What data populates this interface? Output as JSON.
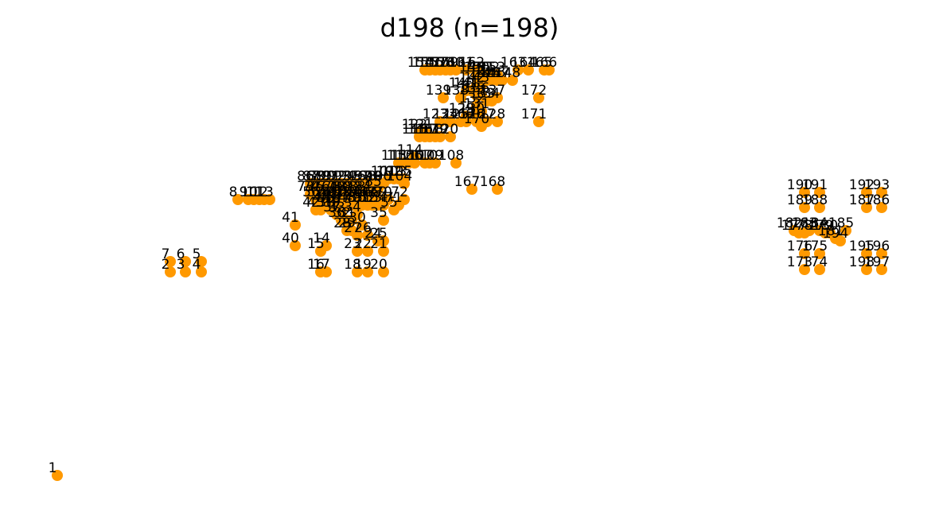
{
  "chart_data": {
    "type": "scatter",
    "title": "d198  (n=198)",
    "xlabel": "",
    "ylabel": "",
    "axes_visible": false,
    "grid": false,
    "legend": "none",
    "marker_color": "#ff9900",
    "x_range": [
      0,
      1180
    ],
    "y_range": [
      0,
      644
    ],
    "points": [
      {
        "id": "1",
        "x": 72,
        "y": 598
      },
      {
        "id": "2",
        "x": 214,
        "y": 342
      },
      {
        "id": "3",
        "x": 233,
        "y": 342
      },
      {
        "id": "4",
        "x": 253,
        "y": 342
      },
      {
        "id": "5",
        "x": 253,
        "y": 329
      },
      {
        "id": "6",
        "x": 233,
        "y": 329
      },
      {
        "id": "7",
        "x": 214,
        "y": 329
      },
      {
        "id": "8",
        "x": 299,
        "y": 251
      },
      {
        "id": "9",
        "x": 312,
        "y": 251
      },
      {
        "id": "10",
        "x": 319,
        "y": 251
      },
      {
        "id": "11",
        "x": 326,
        "y": 251
      },
      {
        "id": "12",
        "x": 332,
        "y": 251
      },
      {
        "id": "13",
        "x": 339,
        "y": 251
      },
      {
        "id": "14",
        "x": 410,
        "y": 309
      },
      {
        "id": "15",
        "x": 403,
        "y": 316
      },
      {
        "id": "16",
        "x": 403,
        "y": 342
      },
      {
        "id": "17",
        "x": 410,
        "y": 342
      },
      {
        "id": "18",
        "x": 449,
        "y": 342
      },
      {
        "id": "19",
        "x": 462,
        "y": 342
      },
      {
        "id": "20",
        "x": 482,
        "y": 342
      },
      {
        "id": "21",
        "x": 482,
        "y": 316
      },
      {
        "id": "22",
        "x": 462,
        "y": 316
      },
      {
        "id": "23",
        "x": 449,
        "y": 316
      },
      {
        "id": "24",
        "x": 475,
        "y": 303
      },
      {
        "id": "25",
        "x": 482,
        "y": 303
      },
      {
        "id": "26",
        "x": 462,
        "y": 296
      },
      {
        "id": "27",
        "x": 449,
        "y": 296
      },
      {
        "id": "28",
        "x": 436,
        "y": 290
      },
      {
        "id": "29",
        "x": 442,
        "y": 290
      },
      {
        "id": "30",
        "x": 455,
        "y": 283
      },
      {
        "id": "31",
        "x": 442,
        "y": 277
      },
      {
        "id": "32",
        "x": 436,
        "y": 277
      },
      {
        "id": "33",
        "x": 429,
        "y": 270
      },
      {
        "id": "34",
        "x": 449,
        "y": 270
      },
      {
        "id": "35",
        "x": 482,
        "y": 277
      },
      {
        "id": "36",
        "x": 429,
        "y": 277
      },
      {
        "id": "37",
        "x": 423,
        "y": 270
      },
      {
        "id": "38",
        "x": 416,
        "y": 264
      },
      {
        "id": "39",
        "x": 423,
        "y": 264
      },
      {
        "id": "40",
        "x": 371,
        "y": 309
      },
      {
        "id": "41",
        "x": 371,
        "y": 283
      },
      {
        "id": "42",
        "x": 397,
        "y": 264
      },
      {
        "id": "43",
        "x": 403,
        "y": 264
      },
      {
        "id": "44",
        "x": 410,
        "y": 258
      },
      {
        "id": "45",
        "x": 416,
        "y": 258
      },
      {
        "id": "46",
        "x": 423,
        "y": 258
      },
      {
        "id": "47",
        "x": 436,
        "y": 258
      },
      {
        "id": "48",
        "x": 442,
        "y": 258
      },
      {
        "id": "49",
        "x": 449,
        "y": 258
      },
      {
        "id": "50",
        "x": 455,
        "y": 258
      },
      {
        "id": "51",
        "x": 462,
        "y": 258
      },
      {
        "id": "52",
        "x": 468,
        "y": 258
      },
      {
        "id": "53",
        "x": 475,
        "y": 258
      },
      {
        "id": "54",
        "x": 482,
        "y": 258
      },
      {
        "id": "55",
        "x": 495,
        "y": 264
      },
      {
        "id": "56",
        "x": 397,
        "y": 251
      },
      {
        "id": "57",
        "x": 403,
        "y": 251
      },
      {
        "id": "58",
        "x": 410,
        "y": 251
      },
      {
        "id": "59",
        "x": 416,
        "y": 251
      },
      {
        "id": "60",
        "x": 423,
        "y": 251
      },
      {
        "id": "61",
        "x": 429,
        "y": 251
      },
      {
        "id": "62",
        "x": 436,
        "y": 251
      },
      {
        "id": "63",
        "x": 442,
        "y": 251
      },
      {
        "id": "64",
        "x": 449,
        "y": 251
      },
      {
        "id": "65",
        "x": 455,
        "y": 251
      },
      {
        "id": "66",
        "x": 462,
        "y": 251
      },
      {
        "id": "67",
        "x": 468,
        "y": 251
      },
      {
        "id": "68",
        "x": 475,
        "y": 251
      },
      {
        "id": "69",
        "x": 482,
        "y": 251
      },
      {
        "id": "70",
        "x": 488,
        "y": 251
      },
      {
        "id": "71",
        "x": 501,
        "y": 258
      },
      {
        "id": "72",
        "x": 508,
        "y": 251
      },
      {
        "id": "73",
        "x": 390,
        "y": 244
      },
      {
        "id": "74",
        "x": 397,
        "y": 244
      },
      {
        "id": "75",
        "x": 403,
        "y": 244
      },
      {
        "id": "76",
        "x": 410,
        "y": 244
      },
      {
        "id": "77",
        "x": 416,
        "y": 244
      },
      {
        "id": "78",
        "x": 423,
        "y": 244
      },
      {
        "id": "79",
        "x": 429,
        "y": 244
      },
      {
        "id": "80",
        "x": 436,
        "y": 244
      },
      {
        "id": "81",
        "x": 442,
        "y": 244
      },
      {
        "id": "82",
        "x": 449,
        "y": 244
      },
      {
        "id": "83",
        "x": 455,
        "y": 244
      },
      {
        "id": "84",
        "x": 462,
        "y": 244
      },
      {
        "id": "85",
        "x": 475,
        "y": 238
      },
      {
        "id": "86",
        "x": 390,
        "y": 231
      },
      {
        "id": "87",
        "x": 397,
        "y": 231
      },
      {
        "id": "88",
        "x": 403,
        "y": 231
      },
      {
        "id": "89",
        "x": 410,
        "y": 231
      },
      {
        "id": "90",
        "x": 416,
        "y": 231
      },
      {
        "id": "91",
        "x": 423,
        "y": 231
      },
      {
        "id": "92",
        "x": 429,
        "y": 231
      },
      {
        "id": "93",
        "x": 436,
        "y": 231
      },
      {
        "id": "94",
        "x": 442,
        "y": 231
      },
      {
        "id": "95",
        "x": 449,
        "y": 231
      },
      {
        "id": "96",
        "x": 455,
        "y": 231
      },
      {
        "id": "97",
        "x": 462,
        "y": 231
      },
      {
        "id": "98",
        "x": 468,
        "y": 231
      },
      {
        "id": "99",
        "x": 475,
        "y": 231
      },
      {
        "id": "100",
        "x": 482,
        "y": 231
      },
      {
        "id": "101",
        "x": 488,
        "y": 225
      },
      {
        "id": "102",
        "x": 495,
        "y": 225
      },
      {
        "id": "103",
        "x": 501,
        "y": 225
      },
      {
        "id": "104",
        "x": 508,
        "y": 231
      },
      {
        "id": "105",
        "x": 508,
        "y": 225
      },
      {
        "id": "106",
        "x": 521,
        "y": 205
      },
      {
        "id": "107",
        "x": 534,
        "y": 205
      },
      {
        "id": "108",
        "x": 573,
        "y": 205
      },
      {
        "id": "109",
        "x": 547,
        "y": 205
      },
      {
        "id": "110",
        "x": 540,
        "y": 205
      },
      {
        "id": "111",
        "x": 514,
        "y": 205
      },
      {
        "id": "112",
        "x": 508,
        "y": 205
      },
      {
        "id": "113",
        "x": 501,
        "y": 205
      },
      {
        "id": "114",
        "x": 521,
        "y": 198
      },
      {
        "id": "115",
        "x": 527,
        "y": 172
      },
      {
        "id": "116",
        "x": 534,
        "y": 172
      },
      {
        "id": "117",
        "x": 540,
        "y": 172
      },
      {
        "id": "118",
        "x": 547,
        "y": 172
      },
      {
        "id": "119",
        "x": 553,
        "y": 172
      },
      {
        "id": "120",
        "x": 566,
        "y": 172
      },
      {
        "id": "121",
        "x": 534,
        "y": 166
      },
      {
        "id": "122",
        "x": 527,
        "y": 166
      },
      {
        "id": "123",
        "x": 553,
        "y": 153
      },
      {
        "id": "124",
        "x": 566,
        "y": 153
      },
      {
        "id": "125",
        "x": 579,
        "y": 153
      },
      {
        "id": "126",
        "x": 599,
        "y": 153
      },
      {
        "id": "127",
        "x": 612,
        "y": 153
      },
      {
        "id": "128",
        "x": 625,
        "y": 153
      },
      {
        "id": "129",
        "x": 586,
        "y": 146
      },
      {
        "id": "130",
        "x": 599,
        "y": 146
      },
      {
        "id": "131",
        "x": 605,
        "y": 140
      },
      {
        "id": "132",
        "x": 599,
        "y": 133
      },
      {
        "id": "133",
        "x": 612,
        "y": 127
      },
      {
        "id": "134",
        "x": 618,
        "y": 127
      },
      {
        "id": "135",
        "x": 599,
        "y": 120
      },
      {
        "id": "136",
        "x": 605,
        "y": 120
      },
      {
        "id": "137",
        "x": 625,
        "y": 123
      },
      {
        "id": "138",
        "x": 579,
        "y": 123
      },
      {
        "id": "139",
        "x": 557,
        "y": 123
      },
      {
        "id": "140",
        "x": 586,
        "y": 114
      },
      {
        "id": "141",
        "x": 592,
        "y": 114
      },
      {
        "id": "142",
        "x": 599,
        "y": 107
      },
      {
        "id": "143",
        "x": 605,
        "y": 107
      },
      {
        "id": "144",
        "x": 612,
        "y": 101
      },
      {
        "id": "145",
        "x": 618,
        "y": 101
      },
      {
        "id": "146",
        "x": 625,
        "y": 101
      },
      {
        "id": "147",
        "x": 631,
        "y": 101
      },
      {
        "id": "148",
        "x": 644,
        "y": 101
      },
      {
        "id": "149",
        "x": 599,
        "y": 94
      },
      {
        "id": "150",
        "x": 605,
        "y": 94
      },
      {
        "id": "151",
        "x": 612,
        "y": 94
      },
      {
        "id": "152",
        "x": 618,
        "y": 94
      },
      {
        "id": "153",
        "x": 625,
        "y": 94
      },
      {
        "id": "154",
        "x": 534,
        "y": 88
      },
      {
        "id": "155",
        "x": 540,
        "y": 88
      },
      {
        "id": "156",
        "x": 547,
        "y": 88
      },
      {
        "id": "157",
        "x": 553,
        "y": 88
      },
      {
        "id": "158",
        "x": 560,
        "y": 88
      },
      {
        "id": "159",
        "x": 566,
        "y": 88
      },
      {
        "id": "160",
        "x": 573,
        "y": 88
      },
      {
        "id": "161",
        "x": 586,
        "y": 88
      },
      {
        "id": "162",
        "x": 599,
        "y": 88
      },
      {
        "id": "163",
        "x": 651,
        "y": 88
      },
      {
        "id": "164",
        "x": 664,
        "y": 88
      },
      {
        "id": "165",
        "x": 684,
        "y": 88
      },
      {
        "id": "166",
        "x": 690,
        "y": 88
      },
      {
        "id": "167",
        "x": 593,
        "y": 238
      },
      {
        "id": "168",
        "x": 625,
        "y": 238
      },
      {
        "id": "169",
        "x": 586,
        "y": 153
      },
      {
        "id": "170",
        "x": 605,
        "y": 159
      },
      {
        "id": "171",
        "x": 677,
        "y": 153
      },
      {
        "id": "172",
        "x": 677,
        "y": 123
      },
      {
        "id": "173",
        "x": 1011,
        "y": 339
      },
      {
        "id": "174",
        "x": 1030,
        "y": 339
      },
      {
        "id": "175",
        "x": 1030,
        "y": 319
      },
      {
        "id": "176",
        "x": 1011,
        "y": 319
      },
      {
        "id": "177",
        "x": 1004,
        "y": 293
      },
      {
        "id": "178",
        "x": 1011,
        "y": 293
      },
      {
        "id": "179",
        "x": 1037,
        "y": 293
      },
      {
        "id": "180",
        "x": 1043,
        "y": 293
      },
      {
        "id": "181",
        "x": 1050,
        "y": 300
      },
      {
        "id": "182",
        "x": 998,
        "y": 290
      },
      {
        "id": "183",
        "x": 1017,
        "y": 290
      },
      {
        "id": "184",
        "x": 1030,
        "y": 290
      },
      {
        "id": "185",
        "x": 1063,
        "y": 290
      },
      {
        "id": "186",
        "x": 1108,
        "y": 261
      },
      {
        "id": "187",
        "x": 1089,
        "y": 261
      },
      {
        "id": "188",
        "x": 1030,
        "y": 261
      },
      {
        "id": "189",
        "x": 1011,
        "y": 261
      },
      {
        "id": "190",
        "x": 1011,
        "y": 242
      },
      {
        "id": "191",
        "x": 1030,
        "y": 242
      },
      {
        "id": "192",
        "x": 1089,
        "y": 242
      },
      {
        "id": "193",
        "x": 1108,
        "y": 242
      },
      {
        "id": "194",
        "x": 1056,
        "y": 303
      },
      {
        "id": "195",
        "x": 1089,
        "y": 319
      },
      {
        "id": "196",
        "x": 1108,
        "y": 319
      },
      {
        "id": "197",
        "x": 1108,
        "y": 339
      },
      {
        "id": "198",
        "x": 1089,
        "y": 339
      }
    ]
  }
}
